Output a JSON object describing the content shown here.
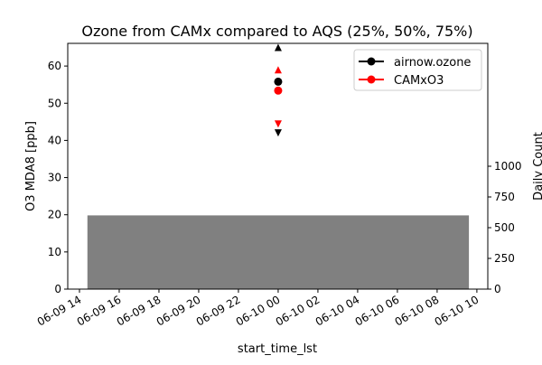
{
  "chart_data": {
    "type": "scatter",
    "title": "Ozone from CAMx compared to AQS (25%, 50%, 75%)",
    "xlabel": "start_time_lst",
    "ylabel": "O3 MDA8 [ppb]",
    "ylabel_right": "Daily Count",
    "x_unit": "hours since 06-09 00",
    "xlim": [
      13.41,
      34.55
    ],
    "ylim": [
      0,
      66.1
    ],
    "ylim_right": [
      0,
      2000
    ],
    "x_ticks": [
      {
        "value": 14,
        "label": "06-09 14"
      },
      {
        "value": 16,
        "label": "06-09 16"
      },
      {
        "value": 18,
        "label": "06-09 18"
      },
      {
        "value": 20,
        "label": "06-09 20"
      },
      {
        "value": 22,
        "label": "06-09 22"
      },
      {
        "value": 24,
        "label": "06-10 00"
      },
      {
        "value": 26,
        "label": "06-10 02"
      },
      {
        "value": 28,
        "label": "06-10 04"
      },
      {
        "value": 30,
        "label": "06-10 06"
      },
      {
        "value": 32,
        "label": "06-10 08"
      },
      {
        "value": 34,
        "label": "06-10 10"
      }
    ],
    "y_ticks": [
      0,
      10,
      20,
      30,
      40,
      50,
      60
    ],
    "y_ticks_right": [
      0,
      250,
      500,
      750,
      1000
    ],
    "count_bar": {
      "x": 24,
      "width_hours": 19.2,
      "value": 600,
      "color": "#808080"
    },
    "series": [
      {
        "name": "airnow.ozone",
        "color": "#000000",
        "x": 24,
        "p25": 42,
        "p50": 55.8,
        "p75": 65
      },
      {
        "name": "CAMxO3",
        "color": "#ff0000",
        "x": 24,
        "p25": 44.4,
        "p50": 53.4,
        "p75": 59
      }
    ]
  }
}
